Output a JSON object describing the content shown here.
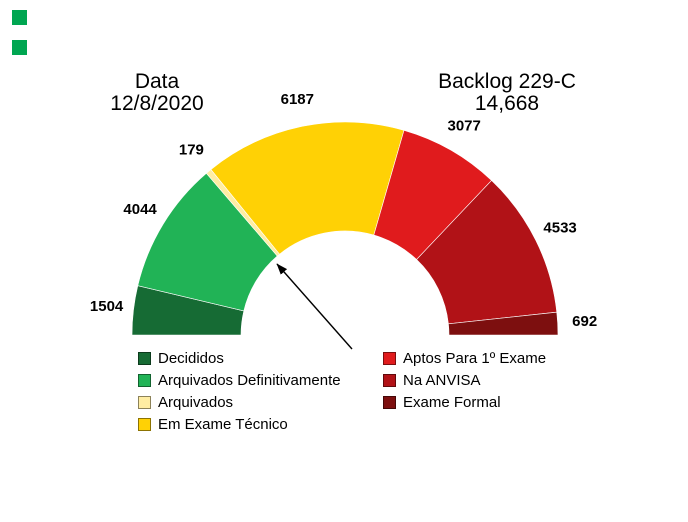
{
  "header": {
    "left_title": "Data",
    "left_subtitle": "12/8/2020",
    "right_title": "Backlog 229-C",
    "right_subtitle": "14,668"
  },
  "decor": {
    "square_color": "#00a651"
  },
  "chart_data": {
    "type": "pie",
    "variant": "half-donut-gauge",
    "title": "Backlog 229-C",
    "date_label": "Data",
    "date": "12/8/2020",
    "backlog_display_total": "14,668",
    "legend_position": "bottom-two-columns",
    "start_angle_deg": 180,
    "end_angle_deg": 0,
    "segments": [
      {
        "label": "Decididos",
        "value": 1504,
        "color": "#166b34"
      },
      {
        "label": "Arquivados Definitivamente",
        "value": 4044,
        "color": "#21b356"
      },
      {
        "label": "Arquivados",
        "value": 179,
        "color": "#ffeda3"
      },
      {
        "label": "Em Exame Técnico",
        "value": 6187,
        "color": "#ffd105"
      },
      {
        "label": "Aptos Para 1º Exame",
        "value": 3077,
        "color": "#e01b1d"
      },
      {
        "label": "Na ANVISA",
        "value": 4533,
        "color": "#b11217"
      },
      {
        "label": "Exame Formal",
        "value": 692,
        "color": "#7d0f0f"
      }
    ]
  },
  "legend": {
    "columns": [
      {
        "items": [
          0,
          1,
          2,
          3
        ]
      },
      {
        "items": [
          4,
          5,
          6
        ]
      }
    ]
  }
}
